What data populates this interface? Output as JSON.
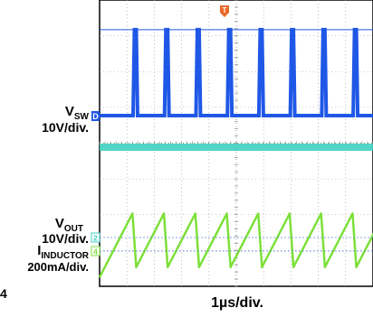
{
  "chart_data": {
    "type": "line",
    "title": "",
    "xlabel": "1µs/div.",
    "time_per_div_us": 1,
    "divisions": {
      "x": 10,
      "y": 8
    },
    "trigger_marker": "T",
    "corner_label": "4",
    "grid": true,
    "series": [
      {
        "name_main": "V",
        "name_sub": "SW",
        "scale": "10V/div.",
        "channel_marker": "D",
        "color": "#1f57e6",
        "values": {
          "period_us": 1.15,
          "duty_cycle": 0.1,
          "high_div": 2.4,
          "low_div": 0
        }
      },
      {
        "name_main": "V",
        "name_sub": "OUT",
        "scale": "10V/div.",
        "channel_marker": "2",
        "color": "#3fd0c0",
        "values": {
          "level_div": 0
        }
      },
      {
        "name_main": "I",
        "name_sub": "INDUCTOR",
        "scale": "200mA/div.",
        "channel_marker": "4",
        "color": "#7de03a",
        "values": {
          "period_us": 1.15,
          "ramp_up_fraction": 0.88,
          "peak_div": 1.1,
          "valley_div": -0.4
        }
      }
    ]
  }
}
